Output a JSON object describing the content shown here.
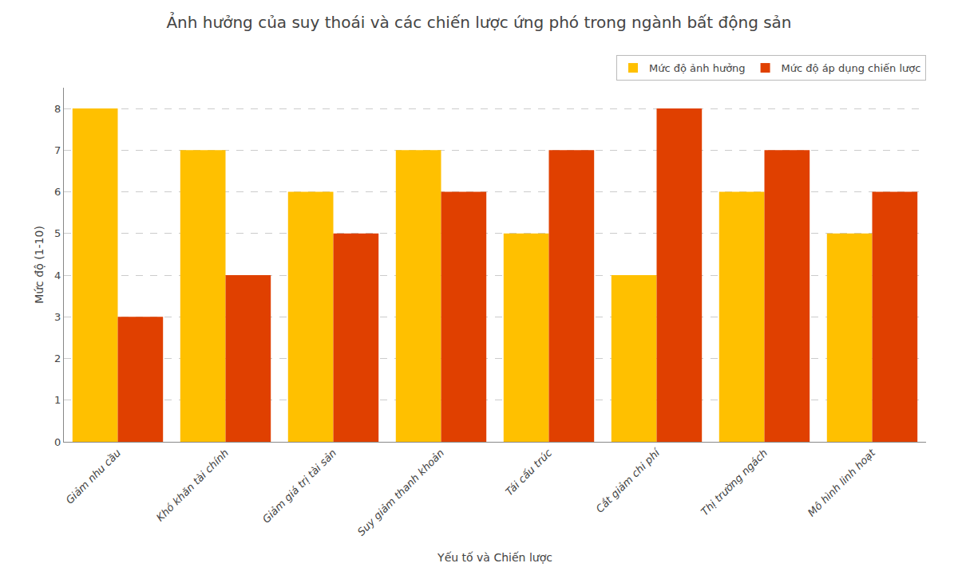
{
  "chart_data": {
    "type": "bar",
    "title": "Ảnh hưởng của suy thoái và các chiến lược ứng phó trong ngành bất động sản",
    "xlabel": "Yếu tố và Chiến lược",
    "ylabel": "Mức độ (1-10)",
    "categories": [
      "Giảm nhu cầu",
      "Khó khăn tài chính",
      "Giảm giá trị tài sản",
      "Suy giảm thanh khoản",
      "Tái cấu trúc",
      "Cắt giảm chi phí",
      "Thị trường ngách",
      "Mô hình linh hoạt"
    ],
    "series": [
      {
        "name": "Mức độ ảnh hưởng",
        "color": "#FFC000",
        "values": [
          8,
          7,
          6,
          7,
          5,
          4,
          6,
          5
        ]
      },
      {
        "name": "Mức độ áp dụng chiến lược",
        "color": "#E04000",
        "values": [
          3,
          4,
          5,
          6,
          7,
          8,
          7,
          6
        ]
      }
    ],
    "ylim": [
      0,
      8.5
    ],
    "yticks": [
      0,
      1,
      2,
      3,
      4,
      5,
      6,
      7,
      8
    ],
    "grid": true,
    "legend": "upper right"
  }
}
